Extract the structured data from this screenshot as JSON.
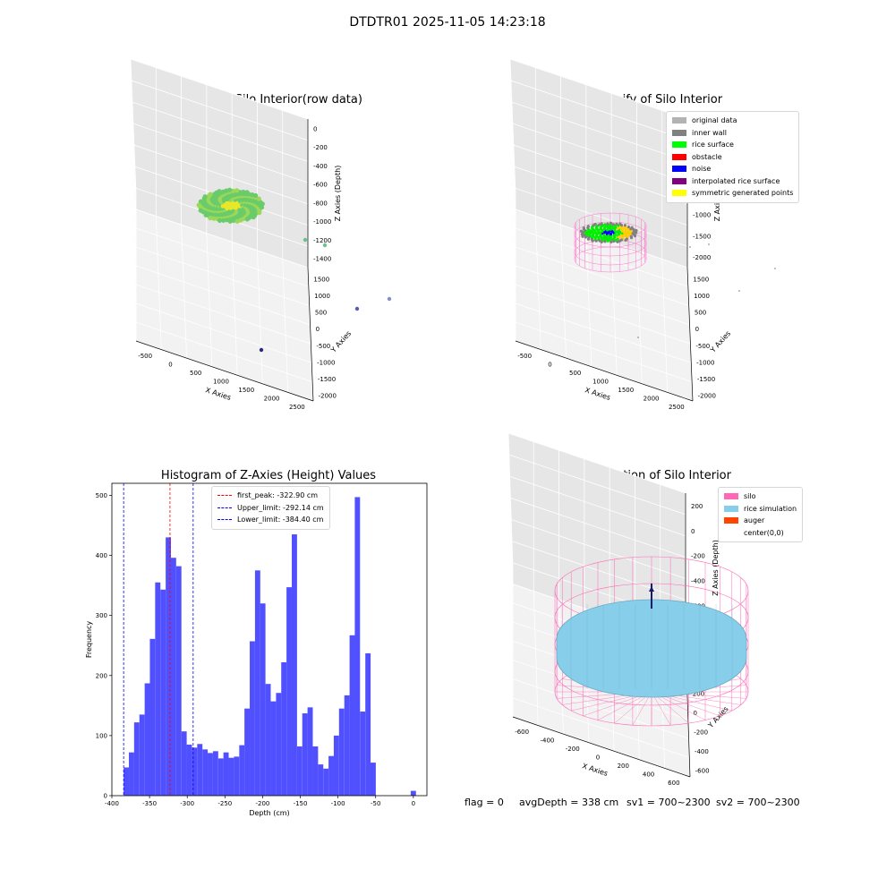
{
  "suptitle": "DTDTR01 2025-11-05 14:23:18",
  "footer": {
    "flag": "flag = 0",
    "avg": "avgDepth = 338 cm",
    "sv1": "sv1 = 700~2300",
    "sv2": "sv2 = 700~2300"
  },
  "chart_data": [
    {
      "type": "scatter3d",
      "title": "3D Plot of Silo Interior(row data)",
      "xlabel": "X Axies",
      "ylabel": "Y Axies",
      "zlabel": "Z Axies (Depth)",
      "xticks": [
        "-500",
        "0",
        "500",
        "1000",
        "1500",
        "2000",
        "2500"
      ],
      "yticks": [
        "-2000",
        "-1500",
        "-1000",
        "-500",
        "0",
        "500",
        "1000",
        "1500"
      ],
      "zticks": [
        "0",
        "-200",
        "-400",
        "-600",
        "-800",
        "-1000",
        "-1200",
        "-1400"
      ]
    },
    {
      "type": "scatter3d",
      "title": "3D classify of Silo Interior",
      "xlabel": "X Axies",
      "ylabel": "Y Axies",
      "zlabel": "Z Axies (Depth)",
      "xticks": [
        "-500",
        "0",
        "500",
        "1000",
        "1500",
        "2000",
        "2500"
      ],
      "yticks": [
        "-2000",
        "-1500",
        "-1000",
        "-500",
        "0",
        "500",
        "1000",
        "1500"
      ],
      "zticks": [
        "1000",
        "500",
        "0",
        "-500",
        "-1000",
        "-1500",
        "-2000"
      ],
      "legend": [
        {
          "label": "original data",
          "color": "#b3b3b3"
        },
        {
          "label": "inner wall",
          "color": "#808080"
        },
        {
          "label": "rice surface",
          "color": "#00ff00"
        },
        {
          "label": "obstacle",
          "color": "#ff0000"
        },
        {
          "label": "noise",
          "color": "#0000ff"
        },
        {
          "label": "interpolated rice surface",
          "color": "#800080"
        },
        {
          "label": "symmetric generated points",
          "color": "#ffff00"
        }
      ]
    },
    {
      "type": "histogram",
      "title": "Histogram of Z-Axies (Height) Values",
      "xlabel": "Depth (cm)",
      "ylabel": "Frequency",
      "xlim": [
        -400,
        18
      ],
      "ylim": [
        0,
        520
      ],
      "xticks": [
        -400,
        -350,
        -300,
        -250,
        -200,
        -150,
        -100,
        -50,
        0
      ],
      "yticks": [
        0,
        100,
        200,
        300,
        400,
        500
      ],
      "bin_width": 6.97,
      "bar_color": "#5050ff",
      "bins": [
        {
          "start": -384.4,
          "count": 47
        },
        {
          "start": -377.4,
          "count": 72
        },
        {
          "start": -370.5,
          "count": 122
        },
        {
          "start": -363.5,
          "count": 135
        },
        {
          "start": -356.5,
          "count": 187
        },
        {
          "start": -349.6,
          "count": 261
        },
        {
          "start": -342.6,
          "count": 355
        },
        {
          "start": -335.6,
          "count": 343
        },
        {
          "start": -328.6,
          "count": 430
        },
        {
          "start": -321.7,
          "count": 396
        },
        {
          "start": -314.7,
          "count": 382
        },
        {
          "start": -307.7,
          "count": 107
        },
        {
          "start": -300.8,
          "count": 85
        },
        {
          "start": -293.8,
          "count": 80
        },
        {
          "start": -286.8,
          "count": 86
        },
        {
          "start": -279.8,
          "count": 77
        },
        {
          "start": -272.9,
          "count": 71
        },
        {
          "start": -265.9,
          "count": 74
        },
        {
          "start": -258.9,
          "count": 62
        },
        {
          "start": -252.0,
          "count": 72
        },
        {
          "start": -245.0,
          "count": 63
        },
        {
          "start": -238.0,
          "count": 65
        },
        {
          "start": -231.0,
          "count": 84
        },
        {
          "start": -224.1,
          "count": 145
        },
        {
          "start": -217.1,
          "count": 257
        },
        {
          "start": -210.1,
          "count": 375
        },
        {
          "start": -203.2,
          "count": 320
        },
        {
          "start": -196.2,
          "count": 186
        },
        {
          "start": -189.2,
          "count": 157
        },
        {
          "start": -182.2,
          "count": 171
        },
        {
          "start": -175.3,
          "count": 222
        },
        {
          "start": -168.3,
          "count": 347
        },
        {
          "start": -161.3,
          "count": 435
        },
        {
          "start": -154.4,
          "count": 82
        },
        {
          "start": -147.4,
          "count": 137
        },
        {
          "start": -140.4,
          "count": 147
        },
        {
          "start": -133.4,
          "count": 82
        },
        {
          "start": -126.5,
          "count": 52
        },
        {
          "start": -119.5,
          "count": 45
        },
        {
          "start": -112.5,
          "count": 66
        },
        {
          "start": -105.6,
          "count": 100
        },
        {
          "start": -98.6,
          "count": 145
        },
        {
          "start": -91.6,
          "count": 167
        },
        {
          "start": -84.6,
          "count": 267
        },
        {
          "start": -77.7,
          "count": 497
        },
        {
          "start": -70.7,
          "count": 140
        },
        {
          "start": -63.7,
          "count": 237
        },
        {
          "start": -56.8,
          "count": 55
        },
        {
          "start": -3.5,
          "count": 8
        }
      ],
      "vlines": [
        {
          "x": -322.9,
          "color": "#ff0000",
          "label": "first_peak: -322.90 cm"
        },
        {
          "x": -292.14,
          "color": "#0000ff",
          "label": "Upper_limit: -292.14 cm"
        },
        {
          "x": -384.4,
          "color": "#0000ff",
          "label": "Lower_limit: -384.40 cm"
        }
      ]
    },
    {
      "type": "surface3d",
      "title": "3D simulation of Silo Interior",
      "xlabel": "X Axies",
      "ylabel": "Y Axies",
      "zlabel": "Z Axies (Depth)",
      "xticks": [
        "-600",
        "-400",
        "-200",
        "0",
        "200",
        "400",
        "600"
      ],
      "yticks": [
        "-600",
        "-400",
        "-200",
        "0",
        "200",
        "400",
        "600"
      ],
      "zticks": [
        "200",
        "0",
        "-200",
        "-400",
        "-600",
        "-800"
      ],
      "legend": [
        {
          "label": "silo",
          "color": "#ff69b4"
        },
        {
          "label": "rice simulation",
          "color": "#87ceeb"
        },
        {
          "label": "auger",
          "color": "#ff4500"
        },
        {
          "label": "center(0,0)",
          "color": "#ffffff"
        }
      ]
    }
  ]
}
